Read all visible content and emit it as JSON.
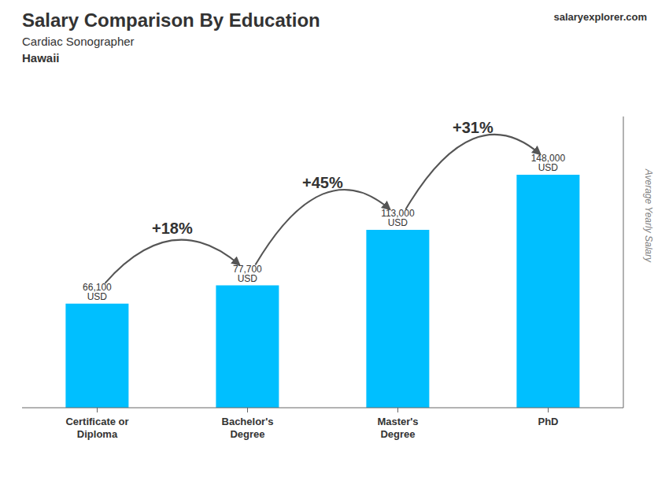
{
  "chart_data": {
    "type": "bar",
    "title": "Salary Comparison By Education",
    "subtitle": [
      "Cardiac Sonographer",
      "Hawaii"
    ],
    "watermark": "salaryexplorer.com",
    "ylabel": "Average Yearly Salary",
    "categories": [
      "Certificate or\nDiploma",
      "Bachelor's\nDegree",
      "Master's\nDegree",
      "PhD"
    ],
    "values": [
      66100,
      77700,
      113000,
      148000
    ],
    "value_labels": [
      "66,100 USD",
      "77,700 USD",
      "113,000 USD",
      "148,000 USD"
    ],
    "data_labels": true,
    "annotations": [
      "+18%",
      "+45%",
      "+31%"
    ],
    "color": "#00BFFF",
    "ylim": [
      0,
      185000
    ],
    "grid": false,
    "tick_labels": "x"
  }
}
